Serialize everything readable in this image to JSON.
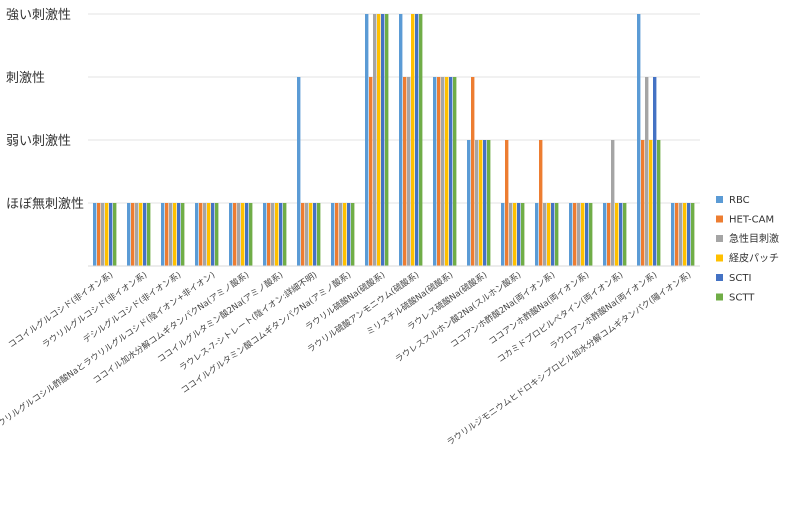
{
  "chart_data": {
    "type": "bar",
    "title": "",
    "xlabel": "",
    "ylabel": "",
    "y_levels": [
      "ほぼ無刺激性",
      "弱い刺激性",
      "刺激性",
      "強い刺激性"
    ],
    "ylim": [
      0,
      4
    ],
    "grid": true,
    "legend_position": "right",
    "categories": [
      "ココイルグルコシド(非イオン系)",
      "ラウリルグルコシド(非イオン系)",
      "デシルグルコシド(非イオン系)",
      "ラウリルグルコシル酢酸Naとラウリルグルコシド(陰イオン+非イオン)",
      "ココイル加水分解コムギタンパクNa(アミノ酸系)",
      "ココイルグルタミン酸2Na(アミノ酸系)",
      "ラウレス-7-シトレート(陰イオン:詳細不明)",
      "ココイルグルタミン酸コムギタンパクNa(アミノ酸系)",
      "ラウリル硫酸Na(硫酸系)",
      "ラウリル硫酸アンモニウム(硫酸系)",
      "ミリスチル硫酸Na(硫酸系)",
      "ラウレス硫酸Na(硫酸系)",
      "ラウレススルホン酸2Na(スルホン酸系)",
      "ココアンホ酢酸2Na(両イオン系)",
      "ココアンホ酢酸Na(両イオン系)",
      "コカミドプロピルベタイン(両イオン系)",
      "ラウロアンホ酢酸Na(両イオン系)",
      "ラウリルジモニウムヒドロキシプロピル加水分解コムギタンパク(陽イオン系)"
    ],
    "series": [
      {
        "name": "RBC",
        "color": "#5b9bd5",
        "values": [
          1,
          1,
          1,
          1,
          1,
          1,
          3,
          1,
          4,
          4,
          3,
          2,
          1,
          1,
          1,
          1,
          4,
          1
        ]
      },
      {
        "name": "HET-CAM",
        "color": "#ed7d31",
        "values": [
          1,
          1,
          1,
          1,
          1,
          1,
          1,
          1,
          3,
          3,
          3,
          3,
          2,
          2,
          1,
          1,
          2,
          1
        ]
      },
      {
        "name": "急性目刺激",
        "color": "#a5a5a5",
        "values": [
          1,
          1,
          1,
          1,
          1,
          1,
          1,
          1,
          4,
          3,
          3,
          2,
          1,
          1,
          1,
          2,
          3,
          1
        ]
      },
      {
        "name": "経皮パッチ",
        "color": "#ffc000",
        "values": [
          1,
          1,
          1,
          1,
          1,
          1,
          1,
          1,
          4,
          4,
          3,
          2,
          1,
          1,
          1,
          1,
          2,
          1
        ]
      },
      {
        "name": "SCTI",
        "color": "#4472c4",
        "values": [
          1,
          1,
          1,
          1,
          1,
          1,
          1,
          1,
          4,
          4,
          3,
          2,
          1,
          1,
          1,
          1,
          3,
          1
        ]
      },
      {
        "name": "SCTT",
        "color": "#70ad47",
        "values": [
          1,
          1,
          1,
          1,
          1,
          1,
          1,
          1,
          4,
          4,
          3,
          2,
          1,
          1,
          1,
          1,
          2,
          1
        ]
      }
    ]
  }
}
